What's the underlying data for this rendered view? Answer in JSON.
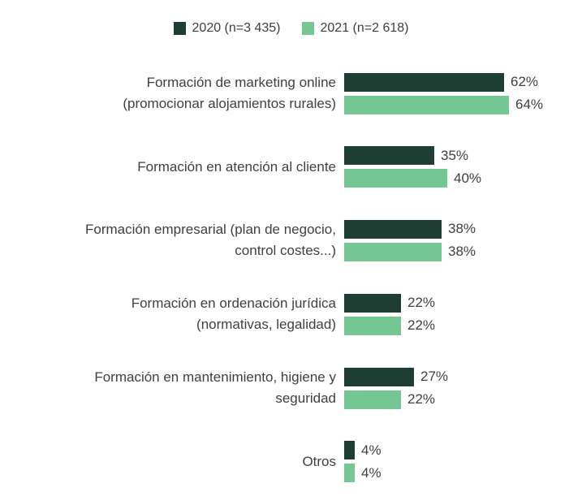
{
  "chart_data": {
    "type": "bar",
    "orientation": "horizontal",
    "title": "",
    "xlabel": "",
    "ylabel": "",
    "xlim": [
      0,
      100
    ],
    "grid": false,
    "legend_position": "top",
    "value_suffix": "%",
    "categories": [
      "Formación de marketing online (promocionar alojamientos rurales)",
      "Formación en atención al cliente",
      "Formación empresarial (plan de negocio, control costes...)",
      "Formación en ordenación jurídica (normativas, legalidad)",
      "Formación en mantenimiento, higiene y seguridad",
      "Otros"
    ],
    "category_lines": [
      [
        "Formación de marketing online",
        "(promocionar alojamientos rurales)"
      ],
      [
        "Formación en atención al cliente"
      ],
      [
        "Formación empresarial (plan de negocio,",
        "control costes...)"
      ],
      [
        "Formación en ordenación jurídica",
        "(normativas, legalidad)"
      ],
      [
        "Formación en mantenimiento, higiene y",
        "seguridad"
      ],
      [
        "Otros"
      ]
    ],
    "series": [
      {
        "name": "2020 (n=3 435)",
        "year": "2020",
        "color": "#1e3d33",
        "values": [
          62,
          35,
          38,
          22,
          27,
          4
        ]
      },
      {
        "name": "2021 (n=2 618)",
        "year": "2021",
        "color": "#74c793",
        "values": [
          64,
          40,
          38,
          22,
          22,
          4
        ]
      }
    ]
  },
  "colors": {
    "text": "#3f3f3f",
    "background": "#ffffff"
  }
}
